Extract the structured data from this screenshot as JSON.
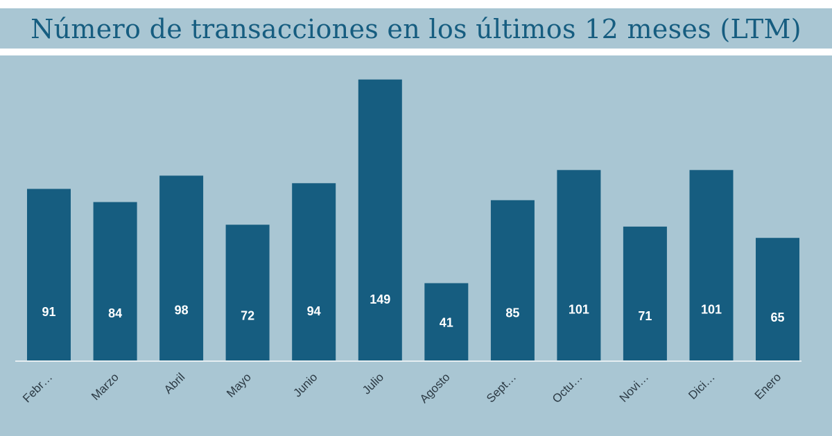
{
  "chart_data": {
    "type": "bar",
    "title": "Número de transacciones en los últimos 12 meses (LTM)",
    "categories": [
      "Febr…",
      "Marzo",
      "Abril",
      "Mayo",
      "Junio",
      "Julio",
      "Agosto",
      "Sept…",
      "Octu…",
      "Novi…",
      "Dici…",
      "Enero"
    ],
    "values": [
      91,
      84,
      98,
      72,
      94,
      149,
      41,
      85,
      101,
      71,
      101,
      65
    ],
    "ylim": [
      0,
      150
    ],
    "xlabel": "",
    "ylabel": "",
    "grid": false,
    "legend": "none"
  },
  "colors": {
    "background": "#a9c6d3",
    "bar": "#165d80",
    "title": "#165d80",
    "value_label": "#ffffff",
    "axis": "#e6eef2"
  }
}
